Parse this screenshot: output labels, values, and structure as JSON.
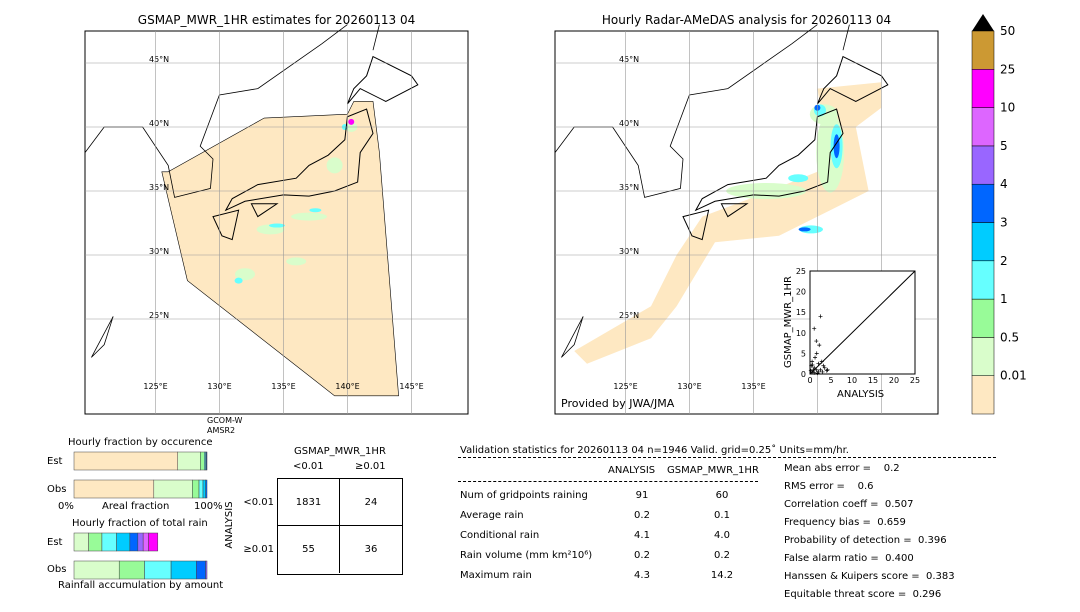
{
  "left_map": {
    "title": "GSMAP_MWR_1HR estimates for 20260113 04",
    "lat_labels": [
      "45°N",
      "40°N",
      "35°N",
      "30°N",
      "25°N"
    ],
    "lon_labels": [
      "125°E",
      "130°E",
      "135°E",
      "140°E",
      "145°E"
    ],
    "sensor_label": [
      "GCOM-W",
      "AMSR2"
    ]
  },
  "right_map": {
    "title": "Hourly Radar-AMeDAS analysis for 20260113 04",
    "lat_labels": [
      "45°N",
      "40°N",
      "35°N",
      "30°N",
      "25°N"
    ],
    "lon_labels": [
      "125°E",
      "130°E",
      "135°E"
    ],
    "credit": "Provided by JWA/JMA"
  },
  "scatter": {
    "xlabel": "ANALYSIS",
    "ylabel": "GSMAP_MWR_1HR",
    "ticks": [
      "0",
      "5",
      "10",
      "15",
      "20",
      "25"
    ],
    "range": [
      0,
      25
    ],
    "points": [
      [
        0.5,
        0.5
      ],
      [
        1,
        0.3
      ],
      [
        1.5,
        1
      ],
      [
        2,
        0.5
      ],
      [
        0.3,
        2
      ],
      [
        1,
        1.5
      ],
      [
        2.5,
        1
      ],
      [
        3,
        0.5
      ],
      [
        0.5,
        3
      ],
      [
        1.2,
        4
      ],
      [
        2,
        2.5
      ],
      [
        0.8,
        1
      ],
      [
        1.8,
        0.2
      ],
      [
        3.5,
        1.5
      ],
      [
        4,
        0.8
      ],
      [
        2.2,
        7
      ],
      [
        1,
        11
      ],
      [
        2.5,
        14
      ],
      [
        1.5,
        8
      ],
      [
        0.2,
        0.8
      ],
      [
        0.6,
        2.2
      ],
      [
        2.8,
        3
      ],
      [
        4.2,
        1
      ],
      [
        3.2,
        2
      ],
      [
        1.6,
        5
      ]
    ]
  },
  "colorbar": {
    "labels": [
      "0.01",
      "0.5",
      "1",
      "2",
      "3",
      "4",
      "5",
      "10",
      "25",
      "50"
    ],
    "colors": [
      "#fee8c2",
      "#d9fdcb",
      "#98fb98",
      "#66ffff",
      "#00ccff",
      "#0066ff",
      "#9966ff",
      "#dd66ff",
      "#ff00ff",
      "#cc9933"
    ]
  },
  "occurrence": {
    "title": "Hourly fraction by occurence",
    "rows": [
      "Est",
      "Obs"
    ],
    "xlabel": "Areal fraction",
    "x0": "0%",
    "x1": "100%",
    "est": [
      0.78,
      0.17,
      0.03,
      0.01,
      0.005,
      0.005
    ],
    "obs": [
      0.6,
      0.29,
      0.05,
      0.03,
      0.02,
      0.01
    ]
  },
  "total_rain": {
    "title": "Hourly fraction of total rain",
    "rows": [
      "Est",
      "Obs"
    ],
    "xlabel": "Rainfall accumulation by amount",
    "est": [
      0.11,
      0.1,
      0.11,
      0.1,
      0.06,
      0.04,
      0.04,
      0.07
    ],
    "obs": [
      0.34,
      0.19,
      0.2,
      0.19,
      0.07,
      0.01
    ]
  },
  "contingency": {
    "title": "GSMAP_MWR_1HR",
    "cols": [
      "<0.01",
      "≥0.01"
    ],
    "rowlabel": "ANALYSIS",
    "rows": [
      "<0.01",
      "≥0.01"
    ],
    "values": [
      [
        "1831",
        "24"
      ],
      [
        "55",
        "36"
      ]
    ]
  },
  "validation": {
    "header": "Validation statistics for 20260113 04  n=1946 Valid. grid=0.25˚ Units=mm/hr.",
    "cols": [
      "ANALYSIS",
      "GSMAP_MWR_1HR"
    ],
    "rows": [
      {
        "label": "Num of gridpoints raining",
        "a": "91",
        "g": "60"
      },
      {
        "label": "Average rain",
        "a": "0.2",
        "g": "0.1"
      },
      {
        "label": "Conditional rain",
        "a": "4.1",
        "g": "4.0"
      },
      {
        "label": "Rain volume (mm km²10⁶)",
        "a": "0.2",
        "g": "0.2"
      },
      {
        "label": "Maximum rain",
        "a": "4.3",
        "g": "14.2"
      }
    ],
    "scores": [
      "Mean abs error =    0.2",
      "RMS error =    0.6",
      "Correlation coeff =  0.507",
      "Frequency bias =  0.659",
      "Probability of detection =  0.396",
      "False alarm ratio =  0.400",
      "Hanssen & Kuipers score =  0.383",
      "Equitable threat score =  0.296"
    ]
  }
}
